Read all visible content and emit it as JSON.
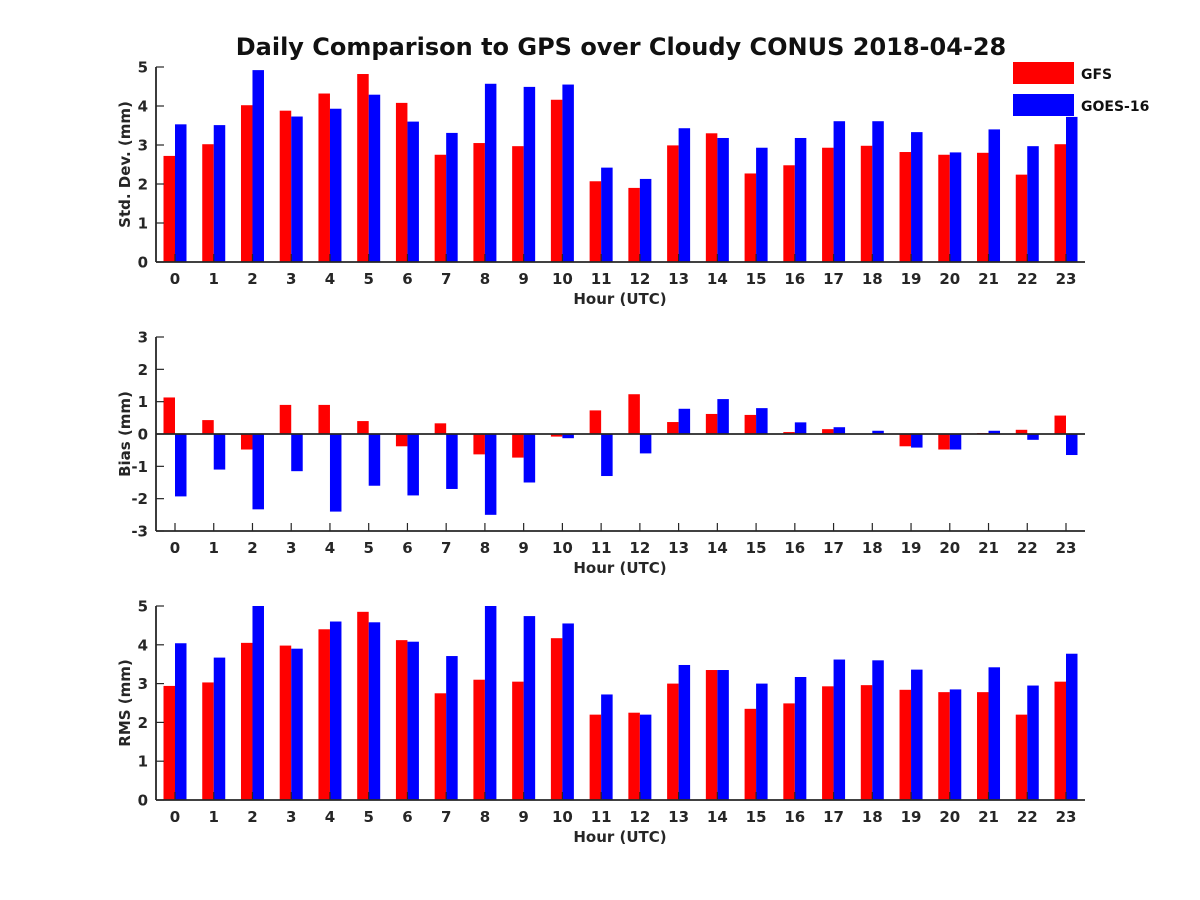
{
  "chart_data": {
    "title": "Daily Comparison to GPS over Cloudy CONUS 2018-04-28",
    "legend": {
      "position": "top-right",
      "entries": [
        "GFS",
        "GOES-16"
      ]
    },
    "colors": {
      "GFS": "#ff0000",
      "GOES-16": "#0000ff"
    },
    "categories": [
      "0",
      "1",
      "2",
      "3",
      "4",
      "5",
      "6",
      "7",
      "8",
      "9",
      "10",
      "11",
      "12",
      "13",
      "14",
      "15",
      "16",
      "17",
      "18",
      "19",
      "20",
      "21",
      "22",
      "23"
    ],
    "panels": [
      {
        "type": "bar",
        "xlabel": "Hour (UTC)",
        "ylabel": "Std. Dev. (mm)",
        "ylim": [
          0,
          5
        ],
        "yticks": [
          "0",
          "1",
          "2",
          "3",
          "4",
          "5"
        ],
        "series": [
          {
            "name": "GFS",
            "values": [
              2.72,
              3.02,
              4.02,
              3.88,
              4.32,
              4.82,
              4.08,
              2.75,
              3.05,
              2.97,
              4.16,
              2.07,
              1.9,
              2.99,
              3.3,
              2.27,
              2.48,
              2.93,
              2.98,
              2.82,
              2.75,
              2.8,
              2.24,
              3.02
            ]
          },
          {
            "name": "GOES-16",
            "values": [
              3.53,
              3.51,
              4.92,
              3.73,
              3.93,
              4.29,
              3.6,
              3.31,
              4.57,
              4.49,
              4.55,
              2.42,
              2.13,
              3.43,
              3.18,
              2.93,
              3.18,
              3.61,
              3.61,
              3.33,
              2.81,
              3.4,
              2.97,
              3.72
            ]
          }
        ]
      },
      {
        "type": "bar",
        "xlabel": "Hour (UTC)",
        "ylabel": "Bias (mm)",
        "ylim": [
          -3,
          3
        ],
        "yticks": [
          "-3",
          "-2",
          "-1",
          "0",
          "1",
          "2",
          "3"
        ],
        "series": [
          {
            "name": "GFS",
            "values": [
              1.13,
              0.43,
              -0.48,
              0.9,
              0.9,
              0.4,
              -0.38,
              0.33,
              -0.63,
              -0.73,
              -0.08,
              0.73,
              1.23,
              0.37,
              0.62,
              0.59,
              0.06,
              0.15,
              0.0,
              -0.38,
              -0.48,
              0.03,
              0.13,
              0.57
            ]
          },
          {
            "name": "GOES-16",
            "values": [
              -1.93,
              -1.1,
              -2.33,
              -1.15,
              -2.4,
              -1.6,
              -1.9,
              -1.7,
              -2.5,
              -1.5,
              -0.13,
              -1.3,
              -0.6,
              0.78,
              1.08,
              0.8,
              0.36,
              0.21,
              0.1,
              -0.42,
              -0.48,
              0.1,
              -0.18,
              -0.65
            ]
          }
        ]
      },
      {
        "type": "bar",
        "xlabel": "Hour (UTC)",
        "ylabel": "RMS (mm)",
        "ylim": [
          0,
          5
        ],
        "yticks": [
          "0",
          "1",
          "2",
          "3",
          "4",
          "5"
        ],
        "series": [
          {
            "name": "GFS",
            "values": [
              2.94,
              3.03,
              4.05,
              3.98,
              4.4,
              4.85,
              4.12,
              2.75,
              3.1,
              3.05,
              4.17,
              2.2,
              2.25,
              3.0,
              3.35,
              2.35,
              2.49,
              2.93,
              2.96,
              2.84,
              2.78,
              2.78,
              2.2,
              3.05
            ]
          },
          {
            "name": "GOES-16",
            "values": [
              4.04,
              3.67,
              5.0,
              3.9,
              4.6,
              4.58,
              4.08,
              3.71,
              5.0,
              4.74,
              4.55,
              2.72,
              2.2,
              3.48,
              3.35,
              3.0,
              3.17,
              3.62,
              3.6,
              3.36,
              2.85,
              3.42,
              2.95,
              3.77
            ]
          }
        ]
      }
    ]
  }
}
